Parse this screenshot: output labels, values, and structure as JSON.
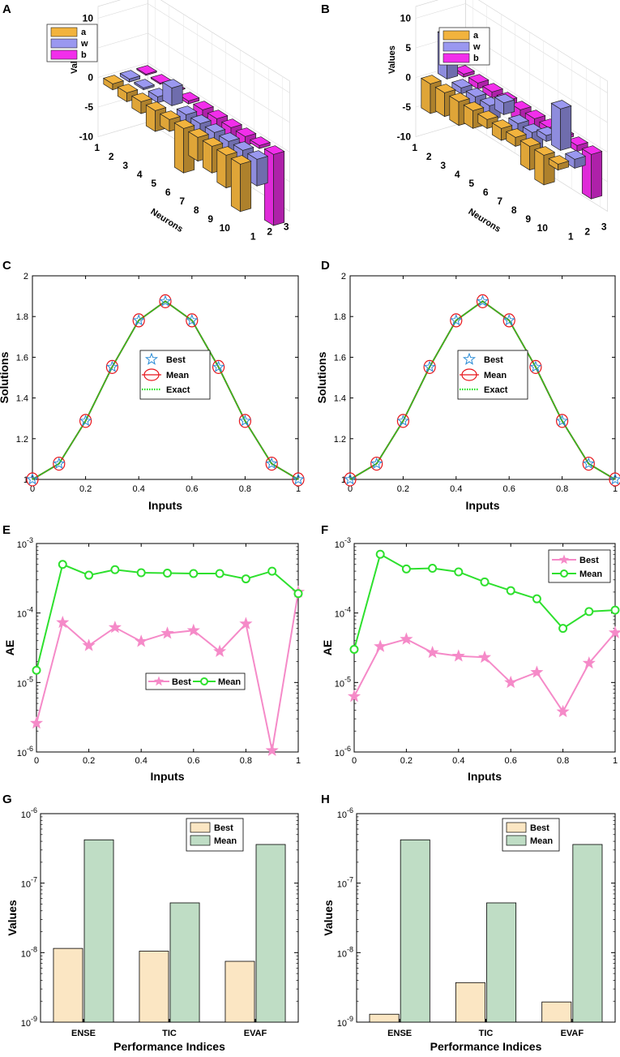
{
  "panel_labels": [
    "A",
    "B",
    "C",
    "D",
    "E",
    "F",
    "G",
    "H"
  ],
  "chart_data": [
    {
      "id": "A",
      "type": "bar3d",
      "zlabel": "Values",
      "xlabel": "Neurons",
      "zticks": [
        "10",
        "5",
        "0",
        "-5",
        "-10"
      ],
      "neuron_ticks": [
        "1",
        "2",
        "3",
        "4",
        "5",
        "6",
        "7",
        "8",
        "9",
        "10"
      ],
      "param_ticks": [
        "1",
        "2",
        "3"
      ],
      "legend": [
        {
          "name": "a",
          "color": "#F2B33D"
        },
        {
          "name": "w",
          "color": "#9A98F0"
        },
        {
          "name": "b",
          "color": "#F22EEB"
        }
      ],
      "series": [
        {
          "name": "a",
          "values": [
            -1,
            -1.5,
            -2,
            -3.5,
            -2,
            -7.5,
            -4,
            -4.5,
            -5.5,
            -8
          ]
        },
        {
          "name": "w",
          "values": [
            -0.5,
            -0.3,
            -1,
            3,
            -1.5,
            -2.5,
            -6.5,
            -6,
            -3.5,
            -4.5
          ]
        },
        {
          "name": "b",
          "values": [
            -0.2,
            -0.2,
            0.1,
            -0.5,
            -1.5,
            -2,
            -3,
            -1.5,
            -0.5,
            -12
          ]
        }
      ]
    },
    {
      "id": "B",
      "type": "bar3d",
      "zlabel": "Values",
      "xlabel": "Neurons",
      "zticks": [
        "10",
        "5",
        "0",
        "-5",
        "-10"
      ],
      "neuron_ticks": [
        "1",
        "2",
        "3",
        "4",
        "5",
        "6",
        "7",
        "8",
        "9",
        "10"
      ],
      "param_ticks": [
        "1",
        "2",
        "3"
      ],
      "legend": [
        {
          "name": "a",
          "color": "#F2B33D"
        },
        {
          "name": "w",
          "color": "#9A98F0"
        },
        {
          "name": "b",
          "color": "#F22EEB"
        }
      ],
      "series": [
        {
          "name": "a",
          "values": [
            -5,
            -4,
            -4,
            -3,
            -1.5,
            -2,
            -1.5,
            -4,
            -5,
            -1
          ]
        },
        {
          "name": "w",
          "values": [
            7,
            -1,
            -1.5,
            -2.5,
            2,
            -1.5,
            -3,
            1,
            7,
            -1.5
          ]
        },
        {
          "name": "b",
          "values": [
            -0.5,
            -1,
            -1,
            -2,
            -2,
            -2.5,
            -2,
            -0.5,
            -1,
            -7.5
          ]
        }
      ]
    },
    {
      "id": "C",
      "type": "line",
      "xlabel": "Inputs",
      "ylabel": "Solutions",
      "xlim": [
        0,
        1
      ],
      "ylim": [
        1,
        2
      ],
      "xticks": [
        "0",
        "0.2",
        "0.4",
        "0.6",
        "0.8",
        "1"
      ],
      "yticks": [
        "1",
        "1.2",
        "1.4",
        "1.6",
        "1.8",
        "2"
      ],
      "x": [
        0,
        0.1,
        0.2,
        0.3,
        0.4,
        0.5,
        0.6,
        0.7,
        0.8,
        0.9,
        1
      ],
      "series": [
        {
          "name": "Best",
          "values": [
            1,
            1.0774,
            1.2874,
            1.5523,
            1.7813,
            1.875,
            1.7813,
            1.5523,
            1.2874,
            1.0774,
            1
          ]
        },
        {
          "name": "Mean",
          "values": [
            1,
            1.0774,
            1.2874,
            1.5523,
            1.7813,
            1.875,
            1.7813,
            1.5523,
            1.2874,
            1.0774,
            1
          ]
        },
        {
          "name": "Exact",
          "values": [
            1,
            1.0774,
            1.2874,
            1.5523,
            1.7813,
            1.875,
            1.7813,
            1.5523,
            1.2874,
            1.0774,
            1
          ]
        }
      ]
    },
    {
      "id": "D",
      "type": "line",
      "xlabel": "Inputs",
      "ylabel": "Solutions",
      "xlim": [
        0,
        1
      ],
      "ylim": [
        1,
        2
      ],
      "xticks": [
        "0",
        "0.2",
        "0.4",
        "0.6",
        "0.8",
        "1"
      ],
      "yticks": [
        "1",
        "1.2",
        "1.4",
        "1.6",
        "1.8",
        "2"
      ],
      "x": [
        0,
        0.1,
        0.2,
        0.3,
        0.4,
        0.5,
        0.6,
        0.7,
        0.8,
        0.9,
        1
      ],
      "series": [
        {
          "name": "Best",
          "values": [
            1,
            1.0774,
            1.2874,
            1.5523,
            1.7813,
            1.875,
            1.7813,
            1.5523,
            1.2874,
            1.0774,
            1
          ]
        },
        {
          "name": "Mean",
          "values": [
            1,
            1.0774,
            1.2874,
            1.5523,
            1.7813,
            1.875,
            1.7813,
            1.5523,
            1.2874,
            1.0774,
            1
          ]
        },
        {
          "name": "Exact",
          "values": [
            1,
            1.0774,
            1.2874,
            1.5523,
            1.7813,
            1.875,
            1.7813,
            1.5523,
            1.2874,
            1.0774,
            1
          ]
        }
      ]
    },
    {
      "id": "E",
      "type": "line",
      "yscale": "log",
      "xlabel": "Inputs",
      "ylabel": "AE",
      "xlim": [
        0,
        1
      ],
      "ylim": [
        1e-06,
        0.001
      ],
      "xticks": [
        "0",
        "0.2",
        "0.4",
        "0.6",
        "0.8",
        "1"
      ],
      "yticks": [
        {
          "base": "10",
          "exp": "-6"
        },
        {
          "base": "10",
          "exp": "-5"
        },
        {
          "base": "10",
          "exp": "-4"
        },
        {
          "base": "10",
          "exp": "-3"
        }
      ],
      "x": [
        0,
        0.1,
        0.2,
        0.3,
        0.4,
        0.5,
        0.6,
        0.7,
        0.8,
        0.9,
        1
      ],
      "series": [
        {
          "name": "Best",
          "color": "#F58AC8",
          "values": [
            2.6e-06,
            7.3e-05,
            3.4e-05,
            6.2e-05,
            3.9e-05,
            5.1e-05,
            5.6e-05,
            2.8e-05,
            7e-05,
            1.05e-06,
            0.0002
          ]
        },
        {
          "name": "Mean",
          "color": "#2EE02E",
          "values": [
            1.5e-05,
            0.0005,
            0.00035,
            0.00042,
            0.00038,
            0.000375,
            0.00037,
            0.00037,
            0.00031,
            0.0004,
            0.00019
          ]
        }
      ]
    },
    {
      "id": "F",
      "type": "line",
      "yscale": "log",
      "xlabel": "Inputs",
      "ylabel": "AE",
      "xlim": [
        0,
        1
      ],
      "ylim": [
        1e-06,
        0.001
      ],
      "xticks": [
        "0",
        "0.2",
        "0.4",
        "0.6",
        "0.8",
        "1"
      ],
      "yticks": [
        {
          "base": "10",
          "exp": "-6"
        },
        {
          "base": "10",
          "exp": "-5"
        },
        {
          "base": "10",
          "exp": "-4"
        },
        {
          "base": "10",
          "exp": "-3"
        }
      ],
      "x": [
        0,
        0.1,
        0.2,
        0.3,
        0.4,
        0.5,
        0.6,
        0.7,
        0.8,
        0.9,
        1
      ],
      "series": [
        {
          "name": "Best",
          "color": "#F58AC8",
          "values": [
            6.3e-06,
            3.3e-05,
            4.2e-05,
            2.7e-05,
            2.4e-05,
            2.3e-05,
            1e-05,
            1.4e-05,
            3.8e-06,
            1.9e-05,
            5.2e-05
          ]
        },
        {
          "name": "Mean",
          "color": "#2EE02E",
          "values": [
            3e-05,
            0.0007,
            0.00043,
            0.00044,
            0.00039,
            0.00028,
            0.00021,
            0.00016,
            6e-05,
            0.000105,
            0.00011
          ]
        }
      ]
    },
    {
      "id": "G",
      "type": "bar",
      "yscale": "log",
      "xlabel": "Performance Indices",
      "ylabel": "Values",
      "ylim": [
        1e-09,
        1e-06
      ],
      "categories": [
        "ENSE",
        "TIC",
        "EVAF"
      ],
      "yticks": [
        {
          "base": "10",
          "exp": "-9"
        },
        {
          "base": "10",
          "exp": "-8"
        },
        {
          "base": "10",
          "exp": "-7"
        },
        {
          "base": "10",
          "exp": "-6"
        }
      ],
      "series": [
        {
          "name": "Best",
          "color": "#FBE6C3",
          "values": [
            1.15e-08,
            1.05e-08,
            7.5e-09
          ]
        },
        {
          "name": "Mean",
          "color": "#BFDDC5",
          "values": [
            4.2e-07,
            5.2e-08,
            3.6e-07
          ]
        }
      ]
    },
    {
      "id": "H",
      "type": "bar",
      "yscale": "log",
      "xlabel": "Performance Indices",
      "ylabel": "Values",
      "ylim": [
        1e-09,
        1e-06
      ],
      "categories": [
        "ENSE",
        "TIC",
        "EVAF"
      ],
      "yticks": [
        {
          "base": "10",
          "exp": "-9"
        },
        {
          "base": "10",
          "exp": "-8"
        },
        {
          "base": "10",
          "exp": "-7"
        },
        {
          "base": "10",
          "exp": "-6"
        }
      ],
      "series": [
        {
          "name": "Best",
          "color": "#FBE6C3",
          "values": [
            1.3e-09,
            3.7e-09,
            1.95e-09
          ]
        },
        {
          "name": "Mean",
          "color": "#BFDDC5",
          "values": [
            4.2e-07,
            5.2e-08,
            3.6e-07
          ]
        }
      ]
    }
  ]
}
